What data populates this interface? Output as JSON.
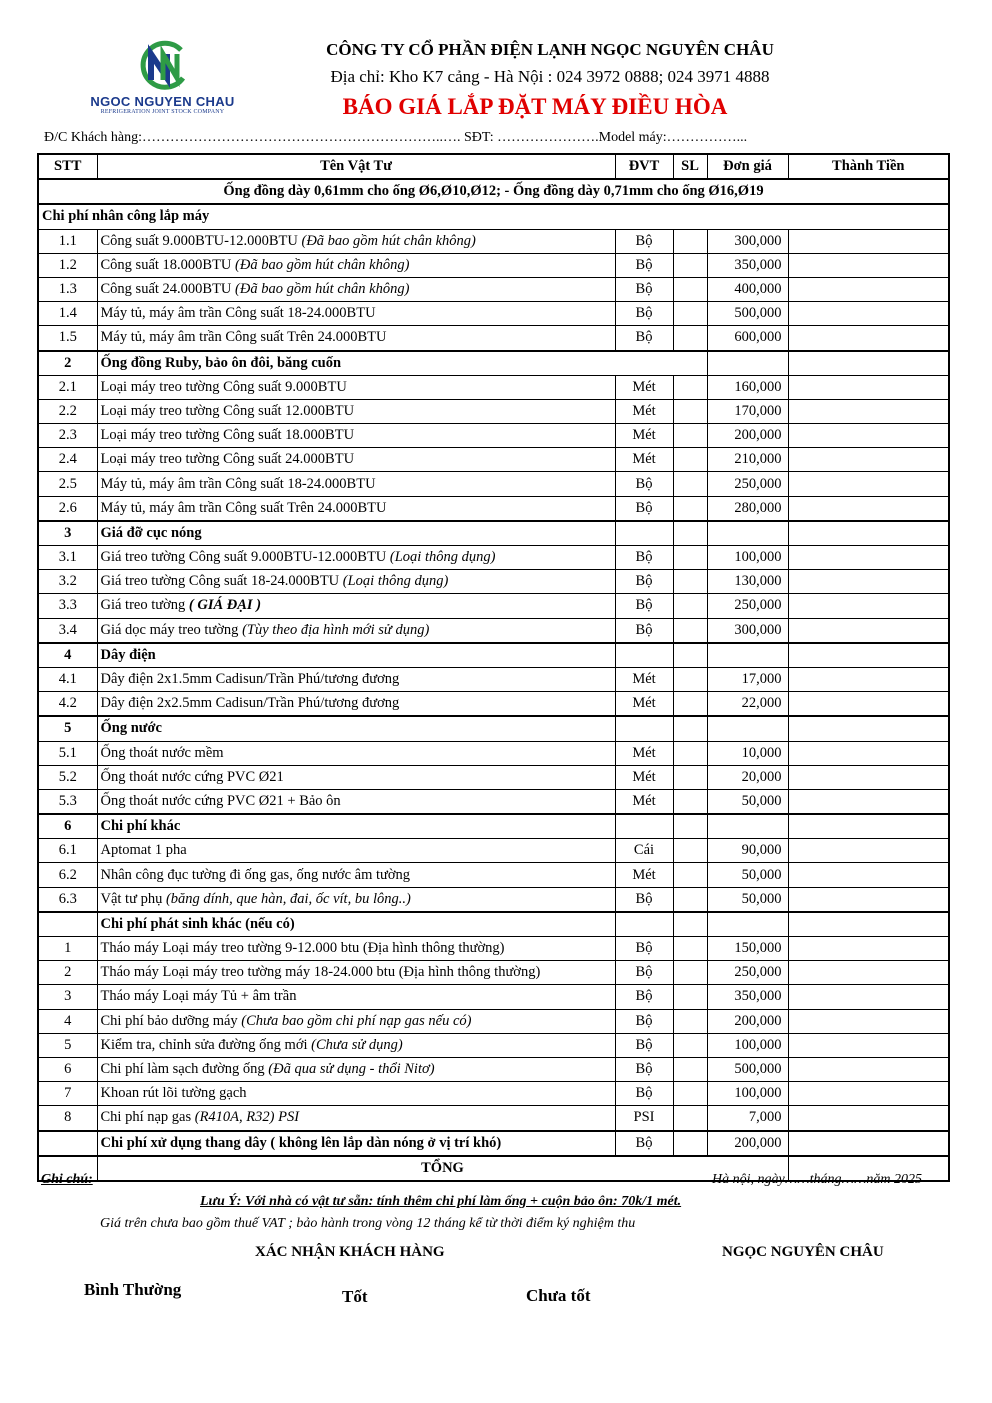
{
  "logo": {
    "name": "NGOC NGUYEN CHAU",
    "subtitle": "REFRIGERATION JOINT STOCK COMPANY",
    "colors": {
      "blue": "#1b3a8c",
      "green": "#2e9b46"
    }
  },
  "header": {
    "company": "CÔNG TY CỔ PHẦN ĐIỆN LẠNH NGỌC NGUYÊN CHÂU",
    "address": "Địa chỉ: Kho K7 cảng - Hà Nội : 024 3972 0888; 024 3971 4888",
    "title": "BÁO GIÁ  LẮP ĐẶT MÁY ĐIỀU HÒA",
    "title_color": "#e00000",
    "customer_line": "Đ/C Khách hàng:………………………………………………………..…. SĐT: ………………….Model máy:……………..."
  },
  "table": {
    "columns": [
      "STT",
      "Tên Vật Tư",
      "ĐVT",
      "SL",
      "Đơn giá",
      "Thành Tiền"
    ],
    "note": "Ống đồng dày 0,61mm cho ống Ø6,Ø10,Ø12;  - Ống đồng dày 0,71mm cho ống Ø16,Ø19",
    "rows": [
      {
        "type": "section",
        "stt": "",
        "name": "Chi phí nhân công lắp máy",
        "full": true
      },
      {
        "stt": "1.1",
        "name": "Công suất 9.000BTU-12.000BTU ",
        "em": "(Đã bao gồm hút chân không)",
        "unit": "Bộ",
        "price": "300,000"
      },
      {
        "stt": "1.2",
        "name": "Công suất 18.000BTU ",
        "em": "(Đã bao gồm hút chân không)",
        "unit": "Bộ",
        "price": "350,000"
      },
      {
        "stt": "1.3",
        "name": "Công suất 24.000BTU ",
        "em": "(Đã bao gồm hút chân không)",
        "unit": "Bộ",
        "price": "400,000"
      },
      {
        "stt": "1.4",
        "name": "Máy tủ, máy âm trần Công suất 18-24.000BTU",
        "unit": "Bộ",
        "price": "500,000"
      },
      {
        "stt": "1.5",
        "name": "Máy tủ, máy âm trần Công suất Trên 24.000BTU",
        "unit": "Bộ",
        "price": "600,000"
      },
      {
        "type": "section",
        "stt": "2",
        "name": "Ống đồng Ruby, bảo ôn đôi, băng cuốn",
        "span": true
      },
      {
        "stt": "2.1",
        "name": "Loại máy treo tường Công suất 9.000BTU",
        "unit": "Mét",
        "price": "160,000"
      },
      {
        "stt": "2.2",
        "name": "Loại máy treo tường Công suất 12.000BTU",
        "unit": "Mét",
        "price": "170,000"
      },
      {
        "stt": "2.3",
        "name": "Loại máy treo tường Công suất 18.000BTU",
        "unit": "Mét",
        "price": "200,000"
      },
      {
        "stt": "2.4",
        "name": "Loại máy treo tường Công suất 24.000BTU",
        "unit": "Mét",
        "price": "210,000"
      },
      {
        "stt": "2.5",
        "name": "Máy tủ, máy âm trần Công suất 18-24.000BTU",
        "unit": "Bộ",
        "price": "250,000"
      },
      {
        "stt": "2.6",
        "name": "Máy tủ, máy âm trần Công suất Trên 24.000BTU",
        "unit": "Bộ",
        "price": "280,000"
      },
      {
        "type": "section",
        "stt": "3",
        "name": "Giá đỡ cục nóng"
      },
      {
        "stt": "3.1",
        "name": "Giá treo tường Công suất 9.000BTU-12.000BTU ",
        "em": "(Loại thông dụng)",
        "unit": "Bộ",
        "price": "100,000"
      },
      {
        "stt": "3.2",
        "name": "Giá treo tường Công suất 18-24.000BTU ",
        "em": "(Loại thông dụng)",
        "unit": "Bộ",
        "price": "130,000"
      },
      {
        "stt": "3.3",
        "name": "Giá treo tường ",
        "em": "( GIÁ ĐẠI )",
        "em_bold": true,
        "unit": "Bộ",
        "price": "250,000"
      },
      {
        "stt": "3.4",
        "name": "Giá dọc máy treo tường ",
        "em": "(Tùy theo địa hình mới sử dụng)",
        "unit": "Bộ",
        "price": "300,000"
      },
      {
        "type": "section",
        "stt": "4",
        "name": "Dây điện"
      },
      {
        "stt": "4.1",
        "name": "Dây điện 2x1.5mm Cadisun/Trần Phú/tương đương",
        "unit": "Mét",
        "price": "17,000"
      },
      {
        "stt": "4.2",
        "name": "Dây điện 2x2.5mm Cadisun/Trần Phú/tương đương",
        "unit": "Mét",
        "price": "22,000"
      },
      {
        "type": "section",
        "stt": "5",
        "name": "Ống nước"
      },
      {
        "stt": "5.1",
        "name": "Ống thoát nước mềm",
        "unit": "Mét",
        "price": "10,000"
      },
      {
        "stt": "5.2",
        "name": "Ống thoát nước cứng PVC Ø21",
        "unit": "Mét",
        "price": "20,000"
      },
      {
        "stt": "5.3",
        "name": "Ống thoát nước cứng PVC Ø21 + Bảo ôn",
        "unit": "Mét",
        "price": "50,000"
      },
      {
        "type": "section",
        "stt": "6",
        "name": "Chi phí khác"
      },
      {
        "stt": "6.1",
        "name": "Aptomat 1 pha",
        "unit": "Cái",
        "price": "90,000"
      },
      {
        "stt": "6.2",
        "name": "Nhân công đục tường đi ống gas, ống nước âm tường",
        "unit": "Mét",
        "price": "50,000"
      },
      {
        "stt": "6.3",
        "name": "Vật tư phụ ",
        "em": "(băng dính, que hàn, đai, ốc vít, bu lông..)",
        "unit": "Bộ",
        "price": "50,000"
      },
      {
        "type": "section",
        "stt": "",
        "name": "Chi phí phát sinh khác (nếu có)"
      },
      {
        "stt": "1",
        "name": "Tháo máy Loại máy treo tường 9-12.000  btu (Địa hình thông thường)",
        "unit": "Bộ",
        "price": "150,000"
      },
      {
        "stt": "2",
        "name": "Tháo máy Loại máy treo tường máy 18-24.000 btu (Địa hình thông thường)",
        "unit": "Bộ",
        "price": "250,000"
      },
      {
        "stt": "3",
        "name": "Tháo máy Loại máy Tủ + âm trần",
        "unit": "Bộ",
        "price": "350,000"
      },
      {
        "stt": "4",
        "name": "Chi phí bảo dưỡng máy ",
        "em": "(Chưa bao gồm chi phí nạp gas nếu có)",
        "unit": "Bộ",
        "price": "200,000"
      },
      {
        "stt": "5",
        "name": "Kiểm tra, chỉnh sửa đường ống mới ",
        "em": "(Chưa sử dụng)",
        "unit": "Bộ",
        "price": "100,000"
      },
      {
        "stt": "6",
        "name": "Chi phí làm sạch đường ống ",
        "em": "(Đã qua sử dụng - thổi Nitơ)",
        "unit": "Bộ",
        "price": "500,000"
      },
      {
        "stt": "7",
        "name": "Khoan rút lõi tường gạch",
        "unit": "Bộ",
        "price": "100,000"
      },
      {
        "stt": "8",
        "name": "Chi phí nạp gas ",
        "em": "(R410A, R32) PSI",
        "unit": "PSI",
        "price": "7,000"
      },
      {
        "type": "bold-item",
        "stt": "",
        "name": "Chi phí xử dụng thang dây ( không lên lắp dàn nóng ở vị trí khó)",
        "unit": "Bộ",
        "price": "200,000"
      }
    ],
    "total_label": "TỔNG"
  },
  "footer": {
    "note_label": "Ghi chú:",
    "date": "Hà nội, ngày……tháng……năm 2025",
    "luu_y": "Lưu Ý: Với nhà có vật tư sẵn:  tính thêm chi phí làm ống + cuộn bảo ôn: 70k/1 mét.",
    "price_note": "Giá trên chưa bao gồm thuế VAT ; bảo hành trong vòng 12 tháng kể từ thời điểm ký nghiệm thu",
    "customer_confirm": "XÁC NHẬN KHÁCH HÀNG",
    "company_sign": "NGỌC NGUYÊN CHÂU",
    "options": [
      "Bình Thường",
      "Tốt",
      "Chưa tốt"
    ]
  }
}
